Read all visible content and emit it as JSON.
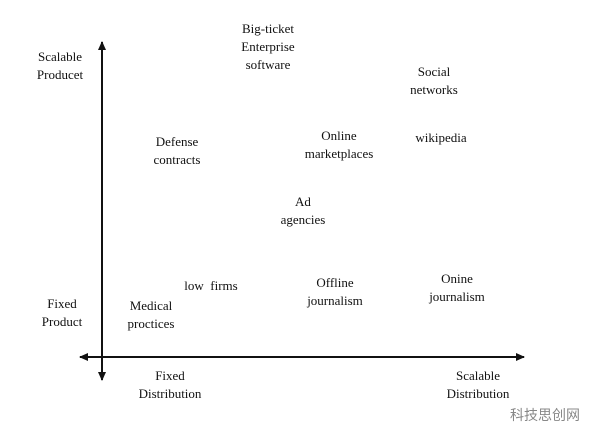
{
  "axes": {
    "y_top": [
      "Scalable",
      "Producet"
    ],
    "y_bottom": [
      "Fixed",
      "Product"
    ],
    "x_left": [
      "Fixed",
      "Distribution"
    ],
    "x_right": [
      "Scalable",
      "Distribution"
    ]
  },
  "items": [
    [
      "Big-ticket",
      "Enterprise",
      "software"
    ],
    [
      "Social",
      "networks"
    ],
    [
      "Defense",
      "contracts"
    ],
    [
      "Online",
      "marketplaces"
    ],
    [
      "wikipedia"
    ],
    [
      "Ad",
      "agencies"
    ],
    [
      "low  firms"
    ],
    [
      "Offline",
      "journalism"
    ],
    [
      "Onine",
      "journalism"
    ],
    [
      "Medical",
      "proctices"
    ]
  ],
  "watermark": "科技思创网"
}
